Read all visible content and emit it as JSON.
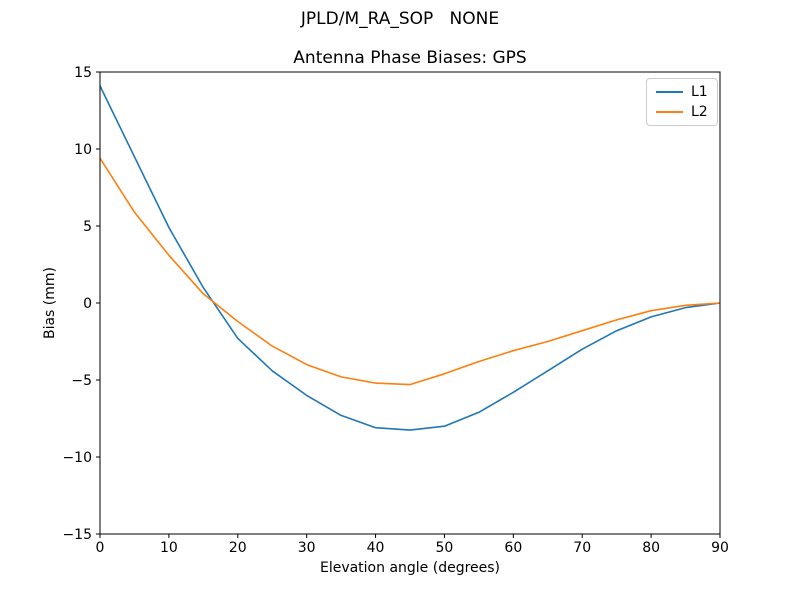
{
  "suptitle": "JPLD/M_RA_SOP   NONE",
  "chart_data": {
    "type": "line",
    "title": "Antenna Phase Biases: GPS",
    "xlabel": "Elevation angle (degrees)",
    "ylabel": "Bias (mm)",
    "xlim": [
      0,
      90
    ],
    "ylim": [
      -15,
      15
    ],
    "xticks": [
      0,
      10,
      20,
      30,
      40,
      50,
      60,
      70,
      80,
      90
    ],
    "yticks": [
      -15,
      -10,
      -5,
      0,
      5,
      10,
      15
    ],
    "grid": false,
    "legend_position": "upper right",
    "x": [
      0,
      5,
      10,
      15,
      20,
      25,
      30,
      35,
      40,
      45,
      50,
      55,
      60,
      65,
      70,
      75,
      80,
      85,
      90
    ],
    "series": [
      {
        "name": "L1",
        "color": "#1f77b4",
        "values": [
          14.1,
          9.5,
          4.9,
          1.0,
          -2.3,
          -4.4,
          -6.0,
          -7.3,
          -8.1,
          -8.25,
          -8.0,
          -7.1,
          -5.8,
          -4.4,
          -3.0,
          -1.8,
          -0.9,
          -0.3,
          0.0
        ]
      },
      {
        "name": "L2",
        "color": "#ff7f0e",
        "values": [
          9.4,
          5.9,
          3.1,
          0.6,
          -1.2,
          -2.8,
          -4.0,
          -4.8,
          -5.2,
          -5.3,
          -4.6,
          -3.8,
          -3.1,
          -2.5,
          -1.8,
          -1.1,
          -0.5,
          -0.15,
          0.0
        ]
      }
    ]
  }
}
